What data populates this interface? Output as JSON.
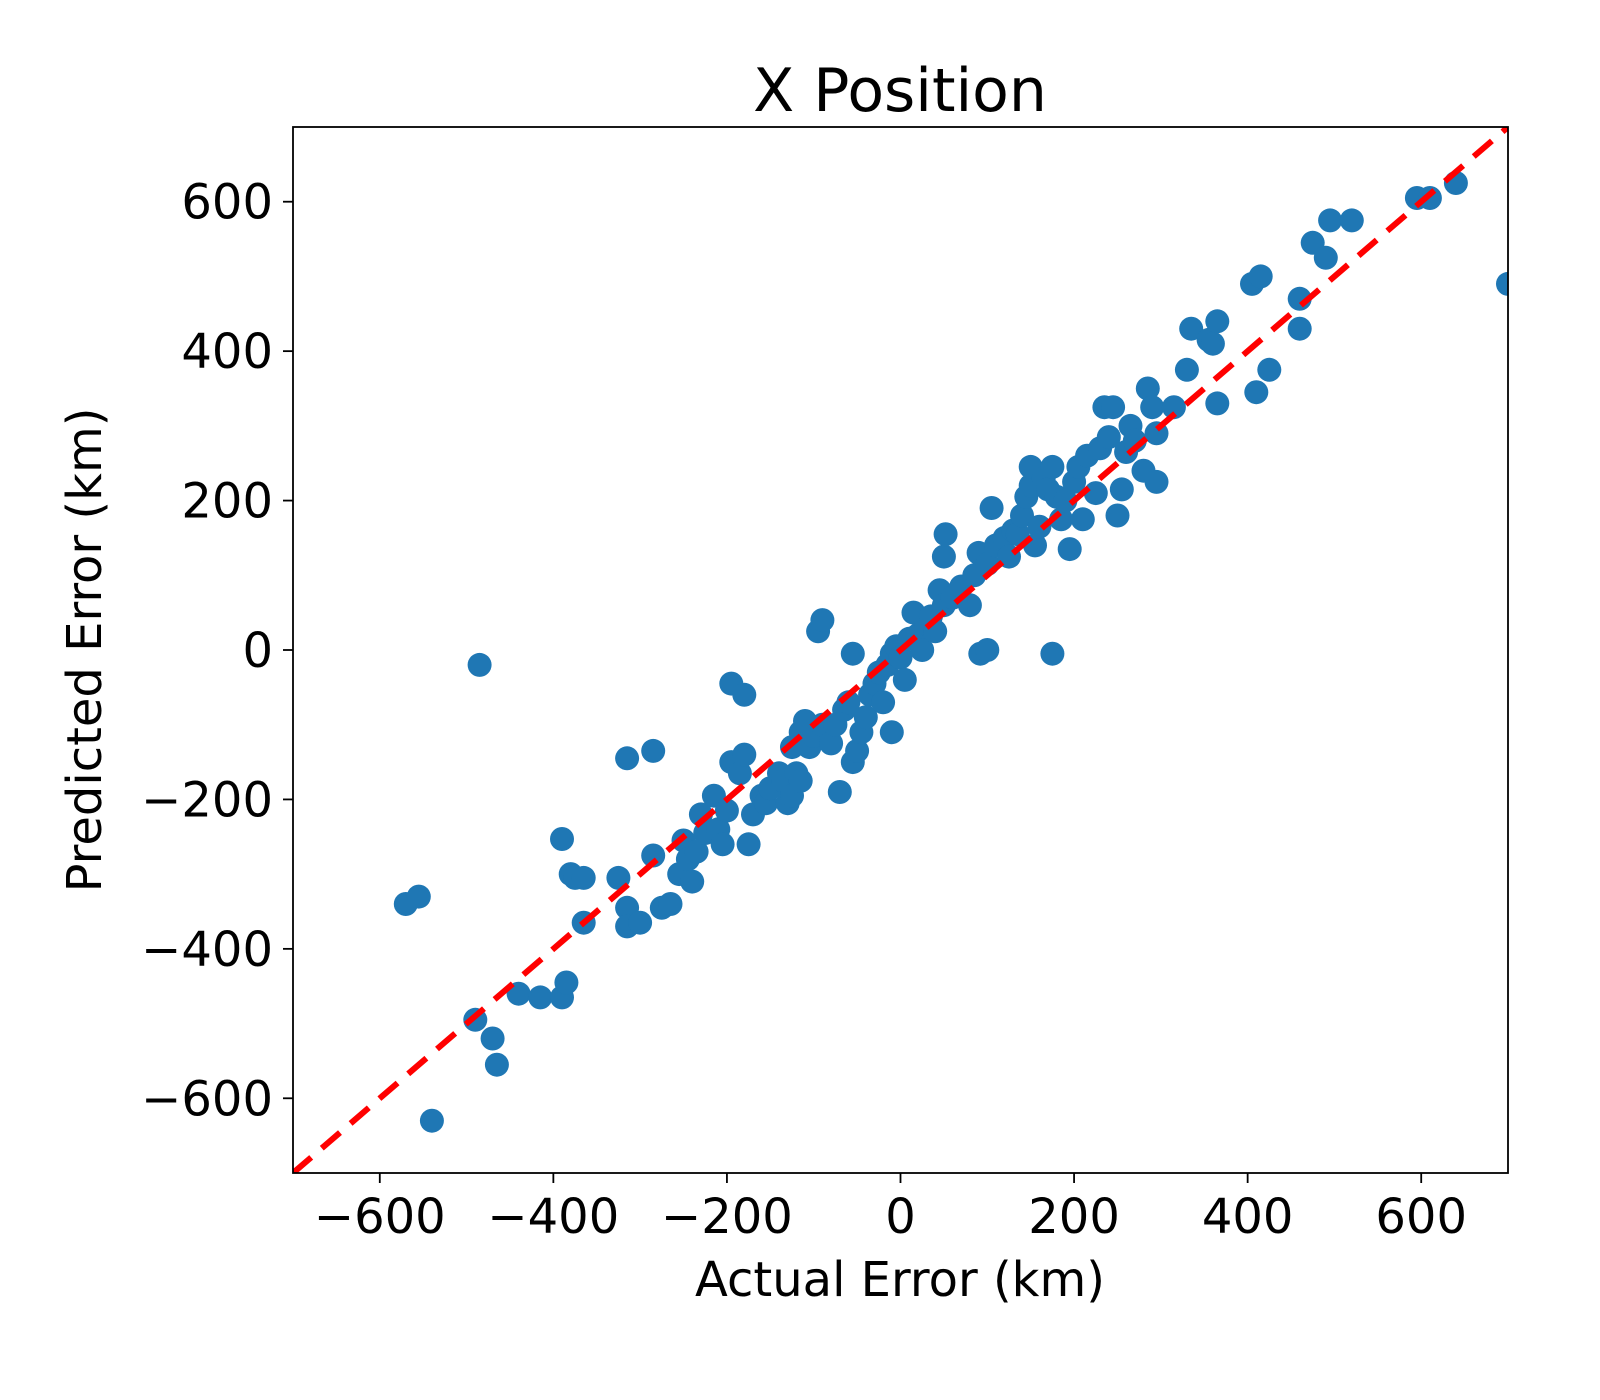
{
  "chart_data": {
    "type": "scatter",
    "title": "X Position",
    "xlabel": "Actual Error (km)",
    "ylabel": "Predicted Error (km)",
    "xlim": [
      -700,
      700
    ],
    "ylim": [
      -700,
      700
    ],
    "xticks": [
      -600,
      -400,
      -200,
      0,
      200,
      400,
      600
    ],
    "yticks": [
      -600,
      -400,
      -200,
      0,
      200,
      400,
      600
    ],
    "xtick_labels": [
      "−600",
      "−400",
      "−200",
      "0",
      "200",
      "400",
      "600"
    ],
    "ytick_labels": [
      "−600",
      "−400",
      "−200",
      "0",
      "200",
      "400",
      "600"
    ],
    "grid": false,
    "reference_line": {
      "x": [
        -700,
        700
      ],
      "y": [
        -700,
        700
      ],
      "style": "dashed",
      "color": "#ff0000"
    },
    "series": [
      {
        "color": "#1f77b4",
        "points": [
          [
            -570,
            -340
          ],
          [
            -555,
            -330
          ],
          [
            -540,
            -630
          ],
          [
            -485,
            -20
          ],
          [
            -490,
            -495
          ],
          [
            -470,
            -520
          ],
          [
            -465,
            -555
          ],
          [
            -440,
            -460
          ],
          [
            -415,
            -465
          ],
          [
            -390,
            -465
          ],
          [
            -385,
            -445
          ],
          [
            -390,
            -253
          ],
          [
            -380,
            -300
          ],
          [
            -375,
            -305
          ],
          [
            -365,
            -305
          ],
          [
            -365,
            -365
          ],
          [
            -325,
            -305
          ],
          [
            -315,
            -345
          ],
          [
            -315,
            -370
          ],
          [
            -300,
            -365
          ],
          [
            -315,
            -145
          ],
          [
            -285,
            -135
          ],
          [
            -285,
            -275
          ],
          [
            -275,
            -345
          ],
          [
            -265,
            -340
          ],
          [
            -255,
            -300
          ],
          [
            -250,
            -255
          ],
          [
            -245,
            -280
          ],
          [
            -240,
            -310
          ],
          [
            -235,
            -270
          ],
          [
            -230,
            -220
          ],
          [
            -225,
            -245
          ],
          [
            -215,
            -195
          ],
          [
            -210,
            -240
          ],
          [
            -205,
            -260
          ],
          [
            -200,
            -215
          ],
          [
            -195,
            -150
          ],
          [
            -195,
            -45
          ],
          [
            -185,
            -165
          ],
          [
            -180,
            -140
          ],
          [
            -180,
            -60
          ],
          [
            -175,
            -260
          ],
          [
            -170,
            -220
          ],
          [
            -160,
            -195
          ],
          [
            -155,
            -205
          ],
          [
            -150,
            -185
          ],
          [
            -140,
            -165
          ],
          [
            -135,
            -175
          ],
          [
            -130,
            -205
          ],
          [
            -125,
            -195
          ],
          [
            -125,
            -130
          ],
          [
            -120,
            -165
          ],
          [
            -115,
            -175
          ],
          [
            -115,
            -110
          ],
          [
            -110,
            -95
          ],
          [
            -105,
            -130
          ],
          [
            -100,
            -115
          ],
          [
            -95,
            25
          ],
          [
            -90,
            40
          ],
          [
            -90,
            -100
          ],
          [
            -80,
            -125
          ],
          [
            -75,
            -100
          ],
          [
            -70,
            -190
          ],
          [
            -65,
            -80
          ],
          [
            -60,
            -70
          ],
          [
            -55,
            -150
          ],
          [
            -55,
            -5
          ],
          [
            -50,
            -135
          ],
          [
            -45,
            -110
          ],
          [
            -40,
            -90
          ],
          [
            -35,
            -60
          ],
          [
            -30,
            -45
          ],
          [
            -25,
            -30
          ],
          [
            -20,
            -70
          ],
          [
            -15,
            -20
          ],
          [
            -10,
            -5
          ],
          [
            -10,
            -110
          ],
          [
            -5,
            5
          ],
          [
            0,
            -10
          ],
          [
            5,
            -40
          ],
          [
            10,
            15
          ],
          [
            15,
            50
          ],
          [
            20,
            20
          ],
          [
            25,
            0
          ],
          [
            30,
            35
          ],
          [
            35,
            45
          ],
          [
            40,
            25
          ],
          [
            45,
            80
          ],
          [
            50,
            60
          ],
          [
            50,
            125
          ],
          [
            52,
            155
          ],
          [
            60,
            70
          ],
          [
            70,
            85
          ],
          [
            80,
            60
          ],
          [
            85,
            100
          ],
          [
            90,
            130
          ],
          [
            92,
            -5
          ],
          [
            100,
            115
          ],
          [
            100,
            0
          ],
          [
            105,
            190
          ],
          [
            110,
            140
          ],
          [
            120,
            150
          ],
          [
            125,
            125
          ],
          [
            130,
            160
          ],
          [
            135,
            155
          ],
          [
            140,
            180
          ],
          [
            145,
            205
          ],
          [
            150,
            220
          ],
          [
            150,
            245
          ],
          [
            155,
            140
          ],
          [
            160,
            165
          ],
          [
            165,
            230
          ],
          [
            170,
            215
          ],
          [
            175,
            245
          ],
          [
            175,
            -5
          ],
          [
            180,
            205
          ],
          [
            185,
            175
          ],
          [
            190,
            200
          ],
          [
            195,
            135
          ],
          [
            200,
            225
          ],
          [
            205,
            245
          ],
          [
            210,
            175
          ],
          [
            215,
            260
          ],
          [
            225,
            210
          ],
          [
            230,
            270
          ],
          [
            235,
            325
          ],
          [
            240,
            285
          ],
          [
            245,
            325
          ],
          [
            250,
            180
          ],
          [
            255,
            215
          ],
          [
            260,
            265
          ],
          [
            265,
            300
          ],
          [
            270,
            280
          ],
          [
            280,
            240
          ],
          [
            285,
            350
          ],
          [
            290,
            325
          ],
          [
            295,
            225
          ],
          [
            295,
            290
          ],
          [
            315,
            325
          ],
          [
            330,
            375
          ],
          [
            335,
            430
          ],
          [
            355,
            415
          ],
          [
            360,
            410
          ],
          [
            365,
            330
          ],
          [
            365,
            440
          ],
          [
            405,
            490
          ],
          [
            410,
            345
          ],
          [
            415,
            500
          ],
          [
            425,
            375
          ],
          [
            460,
            430
          ],
          [
            460,
            470
          ],
          [
            475,
            545
          ],
          [
            490,
            525
          ],
          [
            495,
            575
          ],
          [
            520,
            575
          ],
          [
            595,
            605
          ],
          [
            610,
            605
          ],
          [
            640,
            625
          ],
          [
            700,
            490
          ]
        ]
      }
    ]
  }
}
